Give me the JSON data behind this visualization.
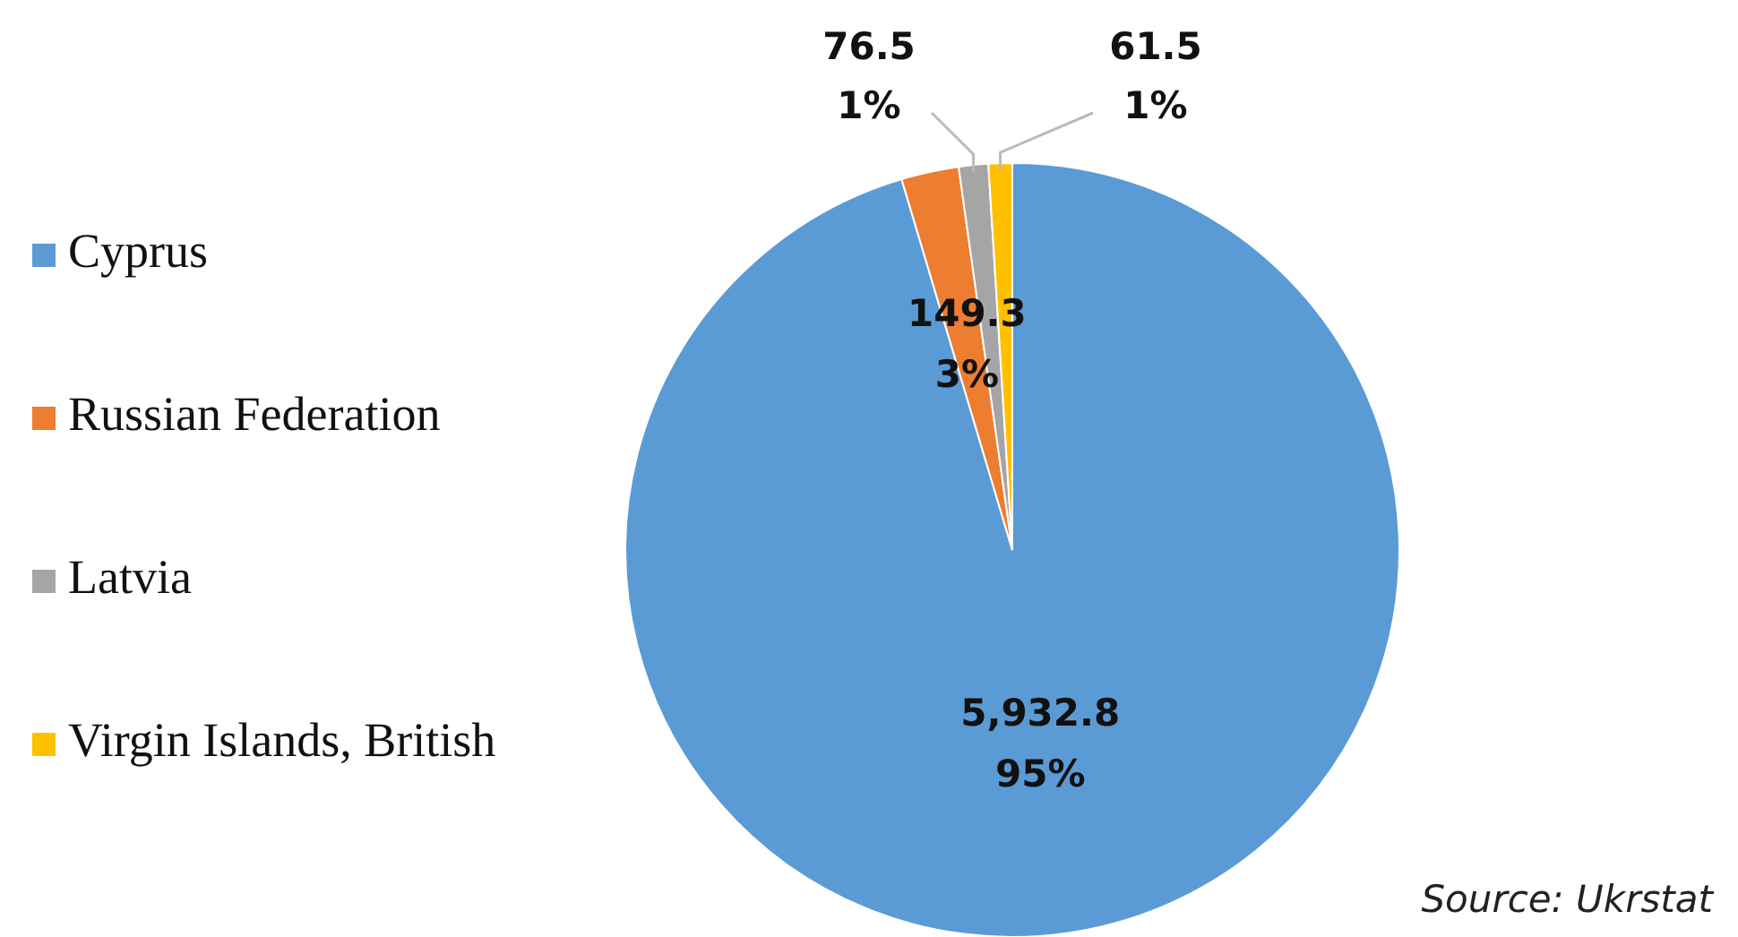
{
  "chart_data": {
    "type": "pie",
    "categories": [
      "Cyprus",
      "Russian Federation",
      "Latvia",
      "Virgin Islands, British"
    ],
    "values": [
      5932.8,
      149.3,
      76.5,
      61.5
    ],
    "colors": [
      "#5b9bd5",
      "#ed7d31",
      "#a5a5a5",
      "#ffc000"
    ],
    "value_labels": [
      "5,932.8\n95%",
      "149.3\n3%",
      "76.5\n1%",
      "61.5\n1%"
    ],
    "legend": "left",
    "annotations": [
      "Source: Ukrstat"
    ]
  }
}
